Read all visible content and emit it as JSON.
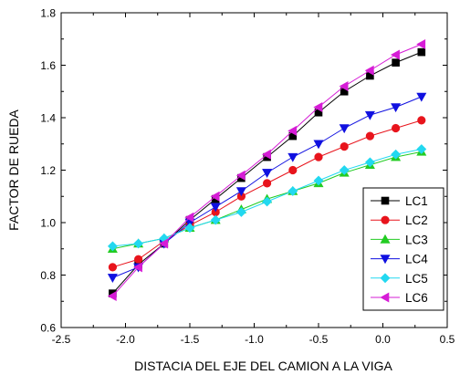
{
  "chart_data": {
    "type": "line",
    "title": "",
    "xlabel": "DISTACIA DEL EJE DEL CAMION A LA VIGA",
    "ylabel": "FACTOR DE RUEDA",
    "xlim": [
      -2.5,
      0.5
    ],
    "ylim": [
      0.6,
      1.8
    ],
    "xticks": [
      -2.5,
      -2.0,
      -1.5,
      -1.0,
      -0.5,
      0.0,
      0.5
    ],
    "xtick_labels": [
      "-2.5",
      "-2.0",
      "-1.5",
      "-1.0",
      "-0.5",
      "0.0",
      "0.5"
    ],
    "yticks": [
      0.6,
      0.8,
      1.0,
      1.2,
      1.4,
      1.6,
      1.8
    ],
    "ytick_labels": [
      "0.6",
      "0.8",
      "1.0",
      "1.2",
      "1.4",
      "1.6",
      "1.8"
    ],
    "grid": false,
    "legend_position": "bottom-right",
    "x": [
      -2.1,
      -1.9,
      -1.7,
      -1.5,
      -1.3,
      -1.1,
      -0.9,
      -0.7,
      -0.5,
      -0.3,
      -0.1,
      0.1,
      0.3
    ],
    "series": [
      {
        "name": "LC1",
        "color": "#000000",
        "marker": "square",
        "values": [
          0.73,
          0.84,
          0.92,
          1.01,
          1.09,
          1.17,
          1.25,
          1.33,
          1.42,
          1.5,
          1.56,
          1.61,
          1.65
        ]
      },
      {
        "name": "LC2",
        "color": "#e8141c",
        "marker": "circle",
        "values": [
          0.83,
          0.86,
          0.93,
          0.99,
          1.04,
          1.1,
          1.15,
          1.2,
          1.25,
          1.29,
          1.33,
          1.36,
          1.39
        ]
      },
      {
        "name": "LC3",
        "color": "#22cc22",
        "marker": "triangle-up",
        "values": [
          0.9,
          0.92,
          0.94,
          0.98,
          1.01,
          1.05,
          1.09,
          1.12,
          1.15,
          1.19,
          1.22,
          1.25,
          1.27
        ]
      },
      {
        "name": "LC4",
        "color": "#1010e0",
        "marker": "triangle-down",
        "values": [
          0.79,
          0.83,
          0.92,
          1.0,
          1.06,
          1.12,
          1.19,
          1.25,
          1.3,
          1.36,
          1.41,
          1.44,
          1.48
        ]
      },
      {
        "name": "LC5",
        "color": "#22d8f0",
        "marker": "diamond",
        "values": [
          0.91,
          0.92,
          0.94,
          0.98,
          1.01,
          1.04,
          1.08,
          1.12,
          1.16,
          1.2,
          1.23,
          1.26,
          1.28
        ]
      },
      {
        "name": "LC6",
        "color": "#d61cd6",
        "marker": "triangle-left",
        "values": [
          0.72,
          0.83,
          0.92,
          1.02,
          1.1,
          1.18,
          1.26,
          1.35,
          1.44,
          1.52,
          1.58,
          1.64,
          1.68
        ]
      }
    ]
  }
}
